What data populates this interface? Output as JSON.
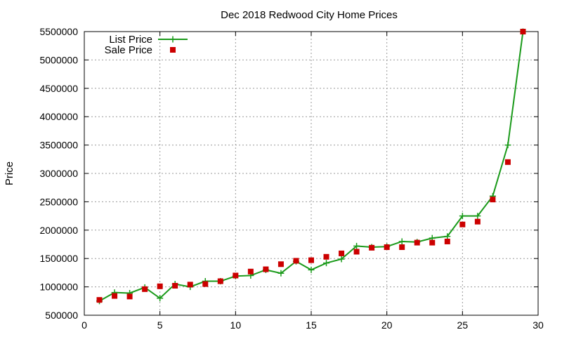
{
  "chart_data": {
    "type": "line",
    "title": "Dec 2018 Redwood City Home Prices",
    "xlabel": "",
    "ylabel": "Price",
    "xlim": [
      0,
      30
    ],
    "ylim": [
      500000,
      5500000
    ],
    "xticks": [
      "0",
      "5",
      "10",
      "15",
      "20",
      "25",
      "30"
    ],
    "yticks": [
      "500000",
      "1000000",
      "1500000",
      "2000000",
      "2500000",
      "3000000",
      "3500000",
      "4000000",
      "4500000",
      "5000000",
      "5500000"
    ],
    "grid": true,
    "legend_position": "top-left",
    "series": [
      {
        "name": "List Price",
        "style": "line-plus",
        "color": "#1a9a1a",
        "points": [
          [
            1,
            750000
          ],
          [
            2,
            900000
          ],
          [
            3,
            890000
          ],
          [
            4,
            990000
          ],
          [
            5,
            800000
          ],
          [
            6,
            1050000
          ],
          [
            7,
            1000000
          ],
          [
            8,
            1100000
          ],
          [
            9,
            1100000
          ],
          [
            10,
            1190000
          ],
          [
            11,
            1200000
          ],
          [
            12,
            1300000
          ],
          [
            13,
            1240000
          ],
          [
            14,
            1450000
          ],
          [
            15,
            1300000
          ],
          [
            16,
            1420000
          ],
          [
            17,
            1490000
          ],
          [
            18,
            1720000
          ],
          [
            19,
            1700000
          ],
          [
            20,
            1710000
          ],
          [
            21,
            1800000
          ],
          [
            22,
            1790000
          ],
          [
            23,
            1860000
          ],
          [
            24,
            1890000
          ],
          [
            25,
            2250000
          ],
          [
            26,
            2250000
          ],
          [
            27,
            2600000
          ],
          [
            28,
            3500000
          ],
          [
            29,
            5500000
          ]
        ]
      },
      {
        "name": "Sale Price",
        "style": "square-marker",
        "color": "#cc0000",
        "points": [
          [
            1,
            770000
          ],
          [
            2,
            840000
          ],
          [
            3,
            830000
          ],
          [
            4,
            960000
          ],
          [
            5,
            1010000
          ],
          [
            6,
            1020000
          ],
          [
            7,
            1040000
          ],
          [
            8,
            1050000
          ],
          [
            9,
            1100000
          ],
          [
            10,
            1200000
          ],
          [
            11,
            1270000
          ],
          [
            12,
            1310000
          ],
          [
            13,
            1400000
          ],
          [
            14,
            1460000
          ],
          [
            15,
            1470000
          ],
          [
            16,
            1530000
          ],
          [
            17,
            1590000
          ],
          [
            18,
            1620000
          ],
          [
            19,
            1690000
          ],
          [
            20,
            1700000
          ],
          [
            21,
            1700000
          ],
          [
            22,
            1780000
          ],
          [
            23,
            1780000
          ],
          [
            24,
            1800000
          ],
          [
            25,
            2100000
          ],
          [
            26,
            2150000
          ],
          [
            27,
            2540000
          ],
          [
            28,
            3200000
          ],
          [
            29,
            5500000
          ]
        ]
      }
    ]
  }
}
